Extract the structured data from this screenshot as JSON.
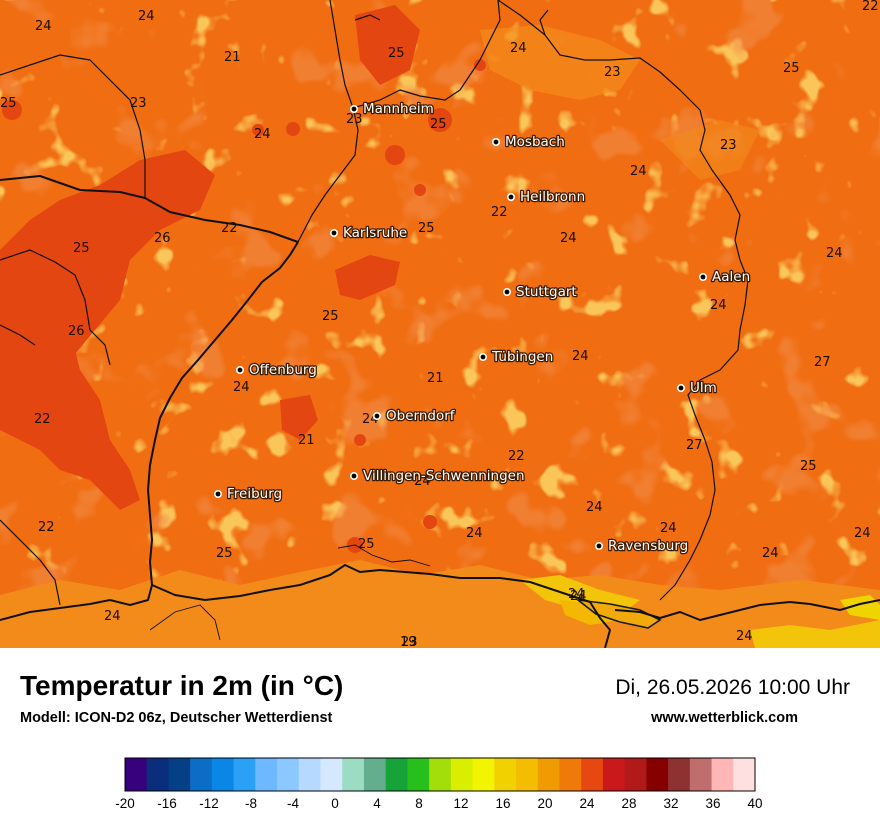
{
  "title": "Temperatur in 2m (in °C)",
  "model": "Modell: ICON-D2 06z, Deutscher Wetterdienst",
  "datetime": "Di, 26.05.2026 10:00 Uhr",
  "website": "www.wetterblick.com",
  "colors": {
    "base_orange": "#f06d12",
    "warm_dark": "#e54511",
    "cool_light": "#f38a1a",
    "yellow_cold": "#f3c50a",
    "border": "#1a1a1a"
  },
  "cities": [
    {
      "name": "Mannheim"
    },
    {
      "name": "Mosbach"
    },
    {
      "name": "Heilbronn"
    },
    {
      "name": "Karlsruhe"
    },
    {
      "name": "Stuttgart"
    },
    {
      "name": "Aalen"
    },
    {
      "name": "Tübingen"
    },
    {
      "name": "Offenburg"
    },
    {
      "name": "Ulm"
    },
    {
      "name": "Oberndorf"
    },
    {
      "name": "Villingen-Schwenningen"
    },
    {
      "name": "Freiburg"
    },
    {
      "name": "Ravensburg"
    }
  ],
  "temperatures": [
    "24",
    "24",
    "22",
    "21",
    "25",
    "24",
    "25",
    "23",
    "23",
    "25",
    "25",
    "24",
    "23",
    "23",
    "24",
    "22",
    "26",
    "25",
    "25",
    "22",
    "24",
    "24",
    "24",
    "25",
    "26",
    "24",
    "27",
    "24",
    "21",
    "24",
    "22",
    "27",
    "21",
    "22",
    "25",
    "24",
    "22",
    "24",
    "24",
    "24",
    "24",
    "25",
    "24",
    "25",
    "24",
    "24",
    "24",
    "19",
    "24",
    "23"
  ],
  "legend": {
    "ticks": [
      "-20",
      "-16",
      "-12",
      "-8",
      "-4",
      "0",
      "4",
      "8",
      "12",
      "16",
      "20",
      "24",
      "28",
      "32",
      "36",
      "40"
    ],
    "colors": [
      "#37007d",
      "#0a2d7c",
      "#053f86",
      "#0b6dc5",
      "#0a87e6",
      "#2aa1f7",
      "#6db8ff",
      "#8cc8ff",
      "#b6d9ff",
      "#d6e8ff",
      "#9bdcc3",
      "#62ae8d",
      "#16a33a",
      "#27bf1c",
      "#a3dd0a",
      "#d9ef00",
      "#f3f400",
      "#f2d100",
      "#f4bd02",
      "#f19b03",
      "#ef7a0a",
      "#e74811",
      "#c9191b",
      "#b21919",
      "#870000",
      "#8d3131",
      "#bf6d6d",
      "#ffb6b6",
      "#ffe0e0"
    ]
  }
}
